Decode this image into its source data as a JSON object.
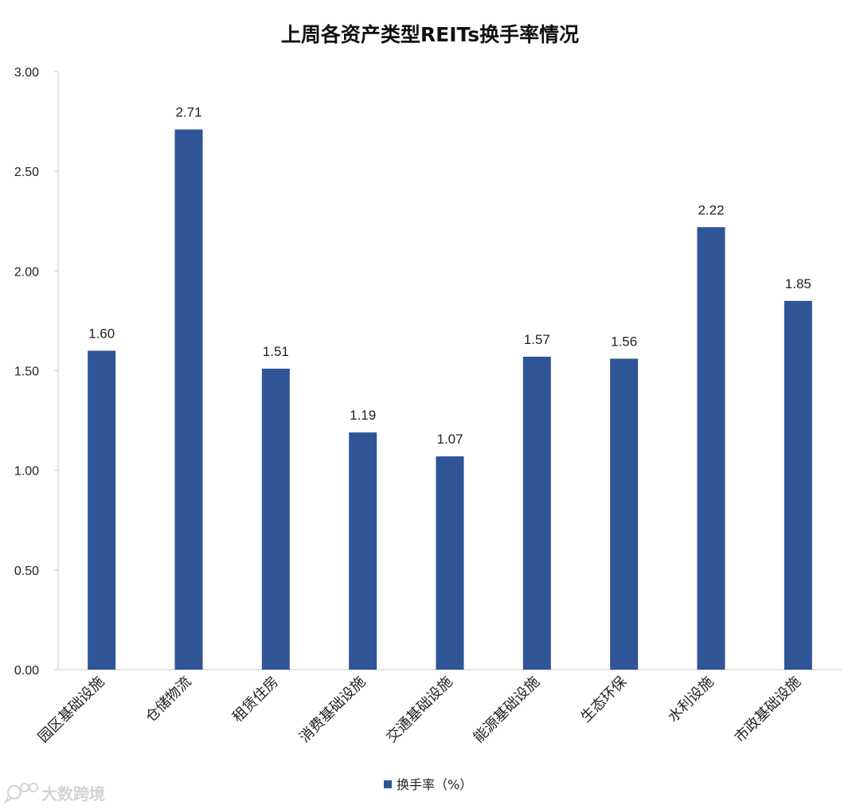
{
  "chart_data": {
    "type": "bar",
    "title": "上周各资产类型REITs换手率情况",
    "categories": [
      "园区基础设施",
      "仓储物流",
      "租赁住房",
      "消费基础设施",
      "交通基础设施",
      "能源基础设施",
      "生态环保",
      "水利设施",
      "市政基础设施"
    ],
    "series": [
      {
        "name": "换手率（%）",
        "values": [
          1.6,
          2.71,
          1.51,
          1.19,
          1.07,
          1.57,
          1.56,
          2.22,
          1.85
        ],
        "color": "#2f5597"
      }
    ],
    "data_labels": [
      "1.60",
      "2.71",
      "1.51",
      "1.19",
      "1.07",
      "1.57",
      "1.56",
      "2.22",
      "1.85"
    ],
    "ylim": [
      0,
      3
    ],
    "yticks": [
      "0.00",
      "0.50",
      "1.00",
      "1.50",
      "2.00",
      "2.50",
      "3.00"
    ],
    "xlabel": "",
    "ylabel": "",
    "grid": false,
    "legend": "bottom"
  },
  "watermark": {
    "icon": "chat-bubble-icon",
    "text": "大数跨境"
  },
  "colors": {
    "axis": "#c8c8c8",
    "watermark": "#d4d4d4"
  }
}
